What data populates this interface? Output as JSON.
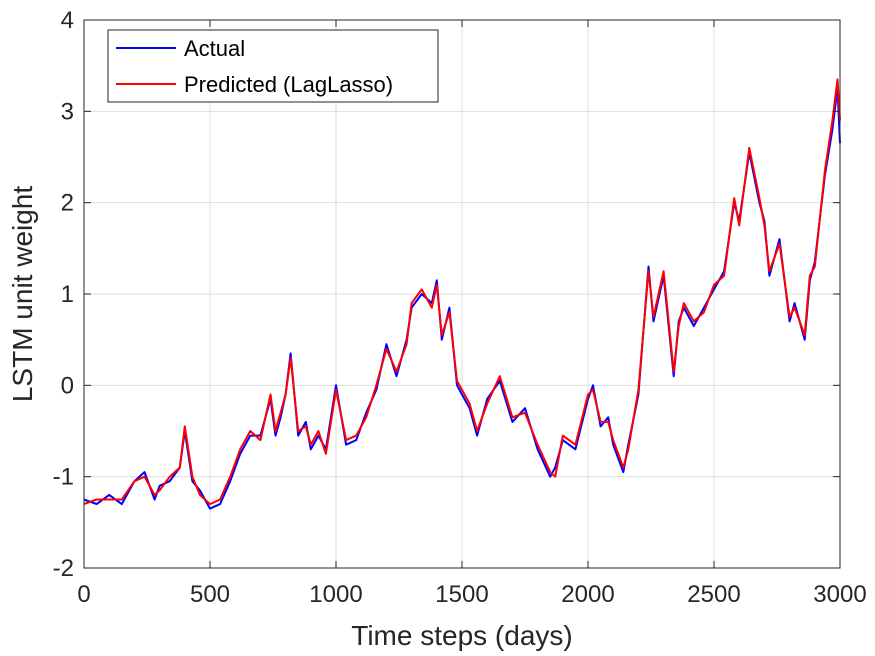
{
  "chart_data": {
    "type": "line",
    "xlabel": "Time steps (days)",
    "ylabel": "LSTM unit weight",
    "xlim": [
      0,
      3000
    ],
    "ylim": [
      -2,
      4
    ],
    "xticks": [
      0,
      500,
      1000,
      1500,
      2000,
      2500,
      3000
    ],
    "xtick_labels": [
      "0",
      "500",
      "1000",
      "1500",
      "2000",
      "2500",
      "3000"
    ],
    "yticks": [
      -2,
      -1,
      0,
      1,
      2,
      3,
      4
    ],
    "ytick_labels": [
      "-2",
      "-1",
      "0",
      "1",
      "2",
      "3",
      "4"
    ],
    "grid": true,
    "legend": "top-left",
    "x": [
      0,
      50,
      100,
      150,
      200,
      240,
      280,
      300,
      340,
      380,
      400,
      430,
      460,
      500,
      540,
      580,
      620,
      660,
      700,
      740,
      760,
      780,
      800,
      820,
      850,
      880,
      900,
      930,
      960,
      1000,
      1040,
      1080,
      1120,
      1160,
      1200,
      1240,
      1280,
      1300,
      1340,
      1380,
      1400,
      1420,
      1450,
      1480,
      1500,
      1530,
      1560,
      1600,
      1650,
      1700,
      1750,
      1800,
      1850,
      1870,
      1900,
      1950,
      2000,
      2020,
      2050,
      2080,
      2100,
      2140,
      2160,
      2200,
      2240,
      2260,
      2300,
      2340,
      2360,
      2380,
      2420,
      2460,
      2500,
      2540,
      2580,
      2600,
      2640,
      2680,
      2700,
      2720,
      2760,
      2800,
      2820,
      2860,
      2880,
      2900,
      2940,
      2970,
      2990,
      3000
    ],
    "series": [
      {
        "name": "Actual",
        "color": "#0000ff",
        "values": [
          -1.25,
          -1.3,
          -1.2,
          -1.3,
          -1.05,
          -0.95,
          -1.25,
          -1.1,
          -1.05,
          -0.9,
          -0.5,
          -1.05,
          -1.15,
          -1.35,
          -1.3,
          -1.05,
          -0.75,
          -0.55,
          -0.55,
          -0.15,
          -0.55,
          -0.35,
          -0.1,
          0.35,
          -0.55,
          -0.4,
          -0.7,
          -0.55,
          -0.7,
          0.0,
          -0.65,
          -0.6,
          -0.3,
          -0.05,
          0.45,
          0.1,
          0.5,
          0.85,
          1.0,
          0.9,
          1.15,
          0.5,
          0.85,
          0.0,
          -0.1,
          -0.25,
          -0.55,
          -0.15,
          0.05,
          -0.4,
          -0.25,
          -0.7,
          -1.0,
          -0.9,
          -0.6,
          -0.7,
          -0.15,
          0.0,
          -0.45,
          -0.35,
          -0.65,
          -0.95,
          -0.65,
          -0.1,
          1.3,
          0.7,
          1.2,
          0.1,
          0.7,
          0.85,
          0.65,
          0.85,
          1.05,
          1.25,
          2.0,
          1.8,
          2.55,
          2.0,
          1.8,
          1.2,
          1.6,
          0.7,
          0.9,
          0.5,
          1.15,
          1.35,
          2.3,
          2.8,
          3.25,
          2.65
        ]
      },
      {
        "name": "Predicted (LagLasso)",
        "color": "#ff0000",
        "values": [
          -1.3,
          -1.25,
          -1.25,
          -1.25,
          -1.05,
          -1.0,
          -1.2,
          -1.15,
          -1.0,
          -0.9,
          -0.45,
          -1.0,
          -1.2,
          -1.3,
          -1.25,
          -1.0,
          -0.7,
          -0.5,
          -0.6,
          -0.1,
          -0.5,
          -0.3,
          -0.1,
          0.3,
          -0.5,
          -0.45,
          -0.65,
          -0.5,
          -0.75,
          -0.05,
          -0.6,
          -0.55,
          -0.35,
          0.0,
          0.4,
          0.15,
          0.45,
          0.9,
          1.05,
          0.85,
          1.1,
          0.55,
          0.8,
          0.05,
          -0.05,
          -0.2,
          -0.5,
          -0.2,
          0.1,
          -0.35,
          -0.3,
          -0.65,
          -0.95,
          -1.0,
          -0.55,
          -0.65,
          -0.1,
          -0.05,
          -0.4,
          -0.4,
          -0.6,
          -0.9,
          -0.7,
          -0.05,
          1.25,
          0.75,
          1.25,
          0.15,
          0.65,
          0.9,
          0.7,
          0.8,
          1.1,
          1.2,
          2.05,
          1.75,
          2.6,
          2.05,
          1.75,
          1.25,
          1.55,
          0.75,
          0.85,
          0.55,
          1.2,
          1.3,
          2.35,
          2.9,
          3.35,
          2.9
        ]
      }
    ]
  }
}
